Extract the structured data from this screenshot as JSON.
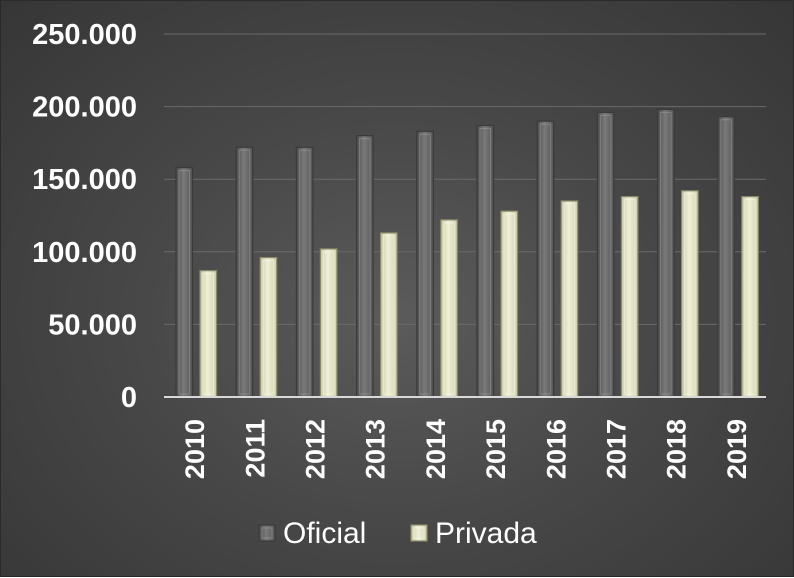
{
  "chart_data": {
    "type": "bar",
    "categories": [
      "2010",
      "2011",
      "2012",
      "2013",
      "2014",
      "2015",
      "2016",
      "2017",
      "2018",
      "2019"
    ],
    "series": [
      {
        "name": "Oficial",
        "color": "#6e6e6e",
        "values": [
          158000,
          172000,
          172000,
          180000,
          183000,
          187000,
          190000,
          196000,
          198000,
          193000
        ]
      },
      {
        "name": "Privada",
        "color": "#e6e6c8",
        "values": [
          87000,
          96000,
          102000,
          113000,
          122000,
          128000,
          135000,
          138000,
          142000,
          138000
        ]
      }
    ],
    "yticks": [
      "0",
      "50.000",
      "100.000",
      "150.000",
      "200.000",
      "250.000"
    ],
    "ylim": [
      0,
      250000
    ],
    "grid": true,
    "legend_position": "bottom",
    "title": "",
    "xlabel": "",
    "ylabel": ""
  }
}
